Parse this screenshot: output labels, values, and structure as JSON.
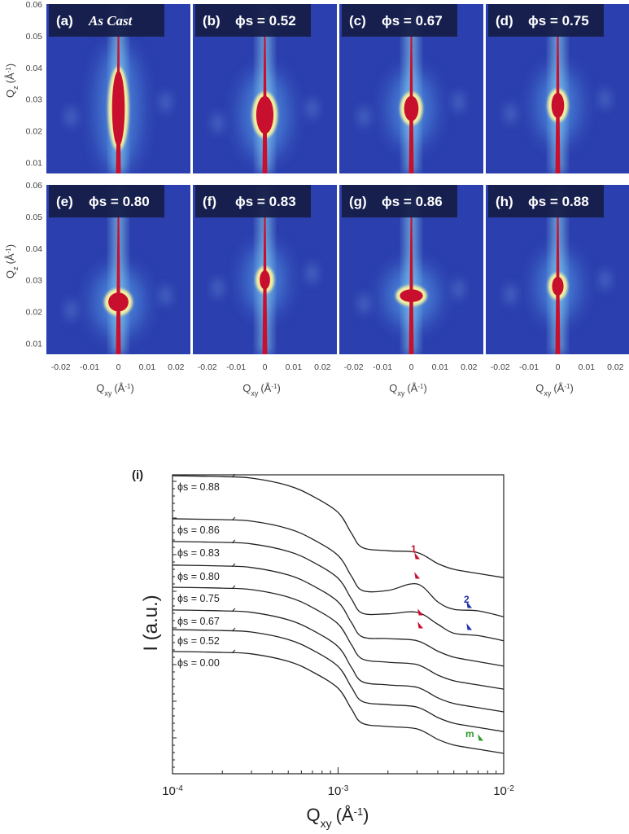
{
  "colors": {
    "map_background": "#2b3fae",
    "map_glow": "#8fd8f0",
    "map_peak": "#c8102e",
    "label_box": "#161c45",
    "curve": "#222222",
    "arrow_1": "#c8102e",
    "arrow_2": "#1f2fb0",
    "arrow_m": "#2e9a2e"
  },
  "chart_data": [
    {
      "type": "heatmap",
      "xlabel": "Q_xy (Å^-1)",
      "xlabel_main": "Q",
      "xlabel_sub": "xy",
      "xlabel_unit": "(Å",
      "xlabel_sup": "-1",
      "ylabel_main": "Q",
      "ylabel_sub": "z",
      "ylabel_unit": "(Å",
      "ylabel_sup": "-1",
      "xlim": [
        -0.025,
        0.025
      ],
      "ylim": [
        0.0065,
        0.06
      ],
      "xticks": [
        "-0.02",
        "-0.01",
        "0",
        "0.01",
        "0.02"
      ],
      "xtick_values": [
        -0.02,
        -0.01,
        0,
        0.01,
        0.02
      ],
      "yticks": [
        "0.06",
        "0.05",
        "0.04",
        "0.03",
        "0.02",
        "0.01"
      ],
      "ytick_values": [
        0.06,
        0.05,
        0.04,
        0.03,
        0.02,
        0.01
      ],
      "panels": [
        {
          "tag": "(a)",
          "label": "As Cast",
          "italic": true,
          "peak_qz": 0.027,
          "peak_halfwidth": 0.0022,
          "peak_halfheight": 0.012
        },
        {
          "tag": "(b)",
          "label": "ϕs = 0.52",
          "peak_qz": 0.025,
          "peak_halfwidth": 0.003,
          "peak_halfheight": 0.006
        },
        {
          "tag": "(c)",
          "label": "ϕs = 0.67",
          "peak_qz": 0.027,
          "peak_halfwidth": 0.0025,
          "peak_halfheight": 0.004
        },
        {
          "tag": "(d)",
          "label": "ϕs = 0.75",
          "peak_qz": 0.028,
          "peak_halfwidth": 0.0022,
          "peak_halfheight": 0.004
        },
        {
          "tag": "(e)",
          "label": "ϕs = 0.80",
          "peak_qz": 0.023,
          "peak_halfwidth": 0.0035,
          "peak_halfheight": 0.003
        },
        {
          "tag": "(f)",
          "label": "ϕs = 0.83",
          "peak_qz": 0.03,
          "peak_halfwidth": 0.0018,
          "peak_halfheight": 0.003
        },
        {
          "tag": "(g)",
          "label": "ϕs = 0.86",
          "peak_qz": 0.025,
          "peak_halfwidth": 0.004,
          "peak_halfheight": 0.002
        },
        {
          "tag": "(h)",
          "label": "ϕs = 0.88",
          "peak_qz": 0.028,
          "peak_halfwidth": 0.002,
          "peak_halfheight": 0.003
        }
      ]
    },
    {
      "type": "line",
      "panel_tag": "(i)",
      "xlabel_main": "Q",
      "xlabel_sub": "xy",
      "xlabel_unit": "(Å",
      "xlabel_sup": "-1",
      "ylabel": "I (a.u.)",
      "xscale": "log",
      "xlim": [
        0.0001,
        0.01
      ],
      "ylim": [
        0,
        10
      ],
      "xticks": [
        {
          "base": "10",
          "exp": "-4",
          "value": 0.0001
        },
        {
          "base": "10",
          "exp": "-3",
          "value": 0.001
        },
        {
          "base": "10",
          "exp": "-2",
          "value": 0.01
        }
      ],
      "x": [
        0.0001,
        0.0002,
        0.0003,
        0.0005,
        0.0007,
        0.001,
        0.0012,
        0.0014,
        0.002,
        0.003,
        0.004,
        0.005,
        0.007,
        0.01
      ],
      "series": [
        {
          "name": "ϕs = 0.88",
          "values": [
            9.97,
            9.94,
            9.89,
            9.64,
            9.29,
            8.74,
            8.06,
            7.57,
            7.46,
            7.4,
            7.03,
            6.84,
            6.7,
            6.56
          ]
        },
        {
          "name": "ϕs = 0.86",
          "values": [
            8.53,
            8.5,
            8.45,
            8.2,
            7.85,
            7.3,
            6.62,
            6.13,
            6.13,
            6.35,
            5.75,
            5.5,
            5.45,
            5.25
          ]
        },
        {
          "name": "ϕs = 0.83",
          "values": [
            7.77,
            7.74,
            7.69,
            7.44,
            7.09,
            6.54,
            5.86,
            5.37,
            5.35,
            5.4,
            5.0,
            4.7,
            4.62,
            4.45
          ]
        },
        {
          "name": "ϕs = 0.80",
          "values": [
            6.98,
            6.95,
            6.9,
            6.65,
            6.3,
            5.75,
            5.07,
            4.58,
            4.52,
            4.45,
            4.1,
            3.9,
            3.75,
            3.6
          ]
        },
        {
          "name": "ϕs = 0.75",
          "values": [
            6.24,
            6.21,
            6.16,
            5.91,
            5.56,
            5.01,
            4.33,
            3.84,
            3.73,
            3.65,
            3.3,
            3.11,
            2.97,
            2.83
          ]
        },
        {
          "name": "ϕs = 0.67",
          "values": [
            5.48,
            5.45,
            5.4,
            5.15,
            4.8,
            4.25,
            3.57,
            3.08,
            2.97,
            2.89,
            2.54,
            2.35,
            2.21,
            2.07
          ]
        },
        {
          "name": "ϕs = 0.52",
          "values": [
            4.82,
            4.79,
            4.74,
            4.49,
            4.14,
            3.59,
            2.91,
            2.42,
            2.31,
            2.23,
            1.88,
            1.69,
            1.55,
            1.41
          ]
        },
        {
          "name": "ϕs = 0.00",
          "values": [
            4.09,
            4.06,
            4.01,
            3.76,
            3.41,
            2.86,
            2.18,
            1.69,
            1.58,
            1.5,
            1.15,
            0.96,
            0.82,
            0.68
          ]
        }
      ],
      "annotations": [
        {
          "text": "1",
          "color": "#c8102e"
        },
        {
          "text": "2",
          "color": "#1f2fb0"
        },
        {
          "text": "m",
          "color": "#2e9a2e"
        }
      ]
    }
  ]
}
